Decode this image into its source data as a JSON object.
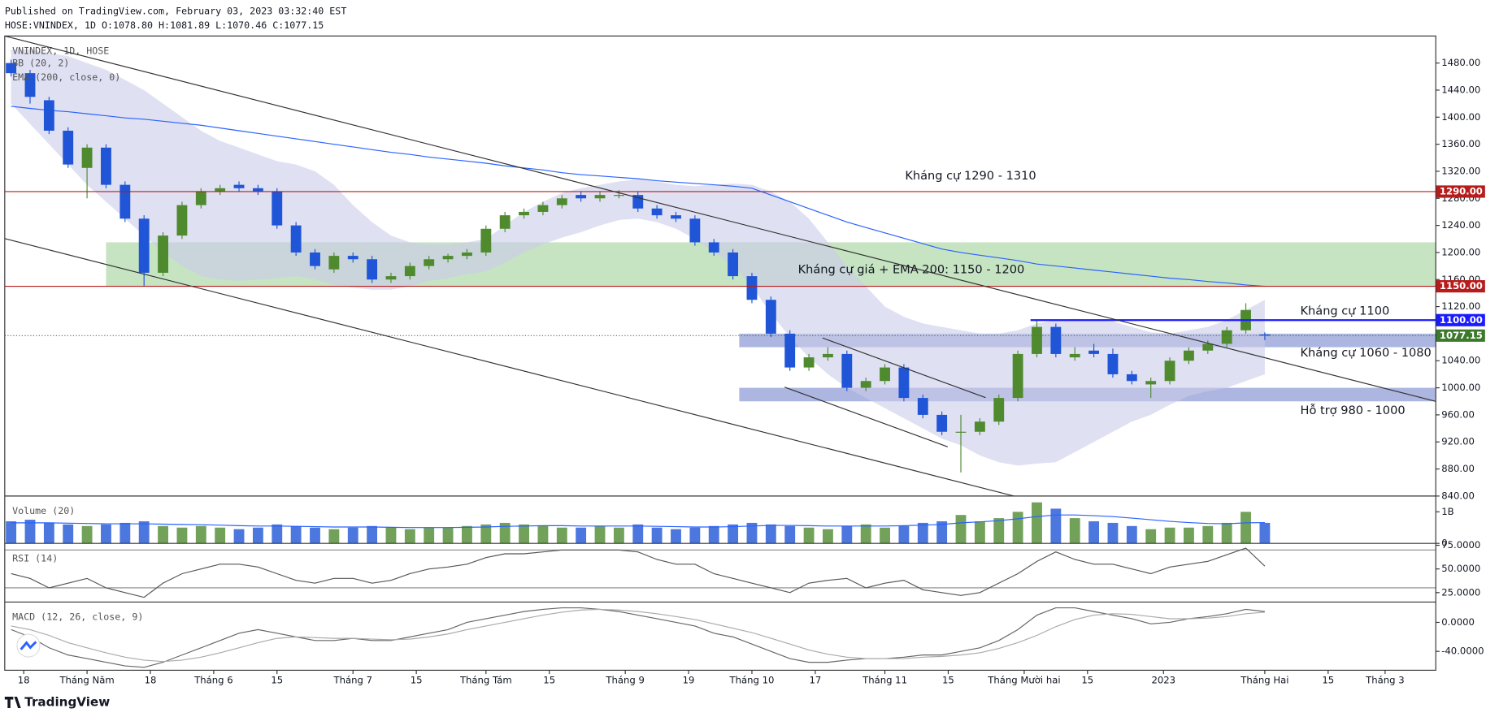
{
  "header": {
    "published": "Published on TradingView.com, February 03, 2023 03:32:40 EST",
    "symbol": "HOSE:VNINDEX, 1D O:1078.80 H:1081.89 L:1070.46 C:1077.15"
  },
  "brand": "TradingView",
  "chart_data": [
    {
      "type": "candlestick",
      "title": "VNINDEX, 1D, HOSE",
      "x": [
        0,
        3,
        6,
        9,
        12,
        15,
        18,
        21,
        24,
        27,
        30,
        33,
        36,
        39,
        42,
        45,
        48,
        51,
        54,
        57,
        60,
        63,
        66,
        69,
        72,
        75,
        78,
        81,
        84,
        87,
        90,
        93,
        96,
        99,
        102,
        105,
        108,
        111,
        114,
        117,
        120,
        123,
        126,
        129,
        132,
        135,
        138,
        141,
        144,
        147,
        150,
        153,
        156,
        159,
        162,
        165,
        168,
        171,
        174,
        177,
        180,
        183,
        186,
        189,
        192,
        195,
        198
      ],
      "open": [
        1480,
        1465,
        1425,
        1380,
        1325,
        1355,
        1300,
        1250,
        1170,
        1225,
        1270,
        1290,
        1300,
        1295,
        1290,
        1240,
        1200,
        1175,
        1195,
        1190,
        1160,
        1165,
        1180,
        1190,
        1195,
        1200,
        1235,
        1255,
        1260,
        1270,
        1285,
        1280,
        1285,
        1285,
        1265,
        1255,
        1250,
        1215,
        1200,
        1165,
        1130,
        1080,
        1030,
        1045,
        1050,
        1000,
        1010,
        1030,
        985,
        960,
        935,
        935,
        950,
        985,
        1050,
        1090,
        1045,
        1055,
        1050,
        1020,
        1005,
        1010,
        1040,
        1055,
        1065,
        1085,
        1078.8
      ],
      "high": [
        1485,
        1470,
        1430,
        1385,
        1360,
        1360,
        1305,
        1255,
        1230,
        1275,
        1295,
        1300,
        1305,
        1300,
        1295,
        1245,
        1205,
        1200,
        1200,
        1195,
        1170,
        1185,
        1195,
        1198,
        1205,
        1240,
        1260,
        1265,
        1275,
        1285,
        1290,
        1290,
        1292,
        1290,
        1270,
        1260,
        1255,
        1220,
        1205,
        1170,
        1135,
        1085,
        1050,
        1060,
        1055,
        1015,
        1035,
        1035,
        990,
        965,
        960,
        955,
        990,
        1055,
        1100,
        1095,
        1060,
        1065,
        1058,
        1025,
        1015,
        1045,
        1060,
        1070,
        1090,
        1125,
        1081.89
      ],
      "low": [
        1460,
        1420,
        1375,
        1325,
        1280,
        1295,
        1245,
        1150,
        1165,
        1220,
        1265,
        1285,
        1290,
        1285,
        1235,
        1195,
        1175,
        1170,
        1185,
        1155,
        1155,
        1160,
        1175,
        1185,
        1190,
        1195,
        1230,
        1250,
        1255,
        1265,
        1275,
        1275,
        1280,
        1260,
        1250,
        1245,
        1210,
        1195,
        1160,
        1125,
        1075,
        1025,
        1025,
        1040,
        995,
        995,
        1005,
        980,
        955,
        930,
        875,
        930,
        945,
        980,
        1045,
        1045,
        1040,
        1045,
        1015,
        1005,
        985,
        1005,
        1035,
        1050,
        1060,
        1080,
        1070.46
      ],
      "close": [
        1465,
        1430,
        1380,
        1330,
        1355,
        1300,
        1250,
        1170,
        1225,
        1270,
        1290,
        1295,
        1295,
        1290,
        1240,
        1200,
        1180,
        1195,
        1190,
        1160,
        1165,
        1180,
        1190,
        1195,
        1200,
        1235,
        1255,
        1260,
        1270,
        1280,
        1280,
        1285,
        1285,
        1265,
        1255,
        1250,
        1215,
        1200,
        1165,
        1130,
        1080,
        1030,
        1045,
        1050,
        1000,
        1010,
        1030,
        985,
        960,
        935,
        935,
        950,
        985,
        1050,
        1090,
        1050,
        1050,
        1050,
        1020,
        1010,
        1010,
        1040,
        1055,
        1065,
        1085,
        1115,
        1077.15
      ],
      "up_color": "#4f8a2f",
      "down_color": "#1f55d6",
      "bb": {
        "name": "BB (20, 2)",
        "color": "#c9cbe9",
        "upper": [
          1500,
          1500,
          1495,
          1490,
          1480,
          1470,
          1455,
          1440,
          1420,
          1400,
          1380,
          1365,
          1355,
          1345,
          1335,
          1330,
          1320,
          1300,
          1270,
          1245,
          1225,
          1215,
          1212,
          1212,
          1215,
          1220,
          1240,
          1260,
          1275,
          1288,
          1295,
          1300,
          1305,
          1308,
          1305,
          1300,
          1298,
          1300,
          1302,
          1300,
          1290,
          1275,
          1250,
          1215,
          1180,
          1150,
          1120,
          1105,
          1095,
          1090,
          1085,
          1080,
          1080,
          1085,
          1095,
          1100,
          1102,
          1100,
          1098,
          1090,
          1082,
          1080,
          1085,
          1090,
          1100,
          1115,
          1130
        ],
        "lower": [
          1420,
          1390,
          1360,
          1330,
          1300,
          1275,
          1250,
          1225,
          1200,
          1180,
          1165,
          1160,
          1158,
          1160,
          1162,
          1165,
          1160,
          1152,
          1148,
          1145,
          1145,
          1150,
          1158,
          1162,
          1168,
          1172,
          1185,
          1200,
          1212,
          1222,
          1230,
          1240,
          1248,
          1250,
          1245,
          1235,
          1220,
          1200,
          1180,
          1150,
          1110,
          1075,
          1045,
          1020,
          1000,
          985,
          970,
          955,
          940,
          925,
          915,
          900,
          890,
          885,
          888,
          890,
          905,
          920,
          935,
          950,
          960,
          975,
          988,
          995,
          1000,
          1010,
          1020
        ]
      },
      "ema": {
        "name": "EMA (200, close, 0)",
        "color": "#2962ff",
        "values": [
          1416,
          1413,
          1410,
          1408,
          1405,
          1402,
          1399,
          1397,
          1394,
          1391,
          1388,
          1384,
          1380,
          1376,
          1372,
          1368,
          1364,
          1360,
          1356,
          1352,
          1348,
          1345,
          1341,
          1338,
          1335,
          1332,
          1328,
          1325,
          1322,
          1318,
          1315,
          1313,
          1311,
          1309,
          1306,
          1304,
          1302,
          1300,
          1298,
          1295,
          1285,
          1275,
          1265,
          1255,
          1245,
          1237,
          1229,
          1221,
          1213,
          1205,
          1200,
          1196,
          1192,
          1188,
          1183,
          1180,
          1177,
          1174,
          1171,
          1168,
          1165,
          1162,
          1160,
          1157,
          1155,
          1152,
          1150
        ]
      },
      "zones": [
        {
          "from": 15,
          "low": 1150,
          "high": 1215,
          "color": "#a9d5a2"
        },
        {
          "from": 115,
          "low": 1060,
          "high": 1080,
          "color": "#7f8fd0"
        },
        {
          "from": 115,
          "low": 980,
          "high": 1000,
          "color": "#7f8fd0"
        }
      ],
      "levels": [
        {
          "value": 1290,
          "label": "1290.00",
          "color": "#b71c1c"
        },
        {
          "value": 1150,
          "label": "1150.00",
          "color": "#b71c1c"
        },
        {
          "value": 1100,
          "label": "1100.00",
          "color": "#1a1aff",
          "from": 161
        },
        {
          "value": 1077.15,
          "label": "1077.15",
          "color": "#3b7a2a",
          "dash": true
        }
      ],
      "annotations": [
        "Kháng cự 1290 - 1310",
        "Kháng cự giá + EMA 200: 1150 - 1200",
        "Kháng cự 1100",
        "Kháng cự 1060 - 1080",
        "Hỗ trợ 980 - 1000"
      ],
      "xlim": [
        -1,
        225
      ],
      "xticks": [
        {
          "value": 2,
          "label": "18"
        },
        {
          "value": 12,
          "label": "Tháng Năm"
        },
        {
          "value": 22,
          "label": "18"
        },
        {
          "value": 32,
          "label": "Tháng 6"
        },
        {
          "value": 42,
          "label": "15"
        },
        {
          "value": 54,
          "label": "Tháng 7"
        },
        {
          "value": 64,
          "label": "15"
        },
        {
          "value": 75,
          "label": "Tháng Tám"
        },
        {
          "value": 85,
          "label": "15"
        },
        {
          "value": 97,
          "label": "Tháng 9"
        },
        {
          "value": 107,
          "label": "19"
        },
        {
          "value": 117,
          "label": "Tháng 10"
        },
        {
          "value": 127,
          "label": "17"
        },
        {
          "value": 138,
          "label": "Tháng 11"
        },
        {
          "value": 148,
          "label": "15"
        },
        {
          "value": 160,
          "label": "Tháng Mười hai"
        },
        {
          "value": 170,
          "label": "15"
        },
        {
          "value": 182,
          "label": "2023"
        },
        {
          "value": 198,
          "label": "Tháng Hai"
        },
        {
          "value": 208,
          "label": "15"
        },
        {
          "value": 217,
          "label": "Tháng 3"
        }
      ],
      "ylim": [
        840,
        1520
      ],
      "yticks": [
        {
          "value": 840,
          "label": "840.00"
        },
        {
          "value": 880,
          "label": "880.00"
        },
        {
          "value": 920,
          "label": "920.00"
        },
        {
          "value": 960,
          "label": "960.00"
        },
        {
          "value": 1000,
          "label": "1000.00"
        },
        {
          "value": 1040,
          "label": "1040.00"
        },
        {
          "value": 1080,
          "label": "1080.00"
        },
        {
          "value": 1120,
          "label": "1120.00"
        },
        {
          "value": 1160,
          "label": "1160.00"
        },
        {
          "value": 1200,
          "label": "1200.00"
        },
        {
          "value": 1240,
          "label": "1240.00"
        },
        {
          "value": 1280,
          "label": "1280.00"
        },
        {
          "value": 1320,
          "label": "1320.00"
        },
        {
          "value": 1360,
          "label": "1360.00"
        },
        {
          "value": 1400,
          "label": "1400.00"
        },
        {
          "value": 1440,
          "label": "1440.00"
        },
        {
          "value": 1480,
          "label": "1480.00"
        }
      ]
    },
    {
      "type": "bar",
      "title": "Volume (20)",
      "values": [
        700000000.0,
        750000000.0,
        650000000.0,
        600000000.0,
        550000000.0,
        600000000.0,
        650000000.0,
        700000000.0,
        550000000.0,
        500000000.0,
        550000000.0,
        500000000.0,
        450000000.0,
        500000000.0,
        600000000.0,
        550000000.0,
        500000000.0,
        450000000.0,
        500000000.0,
        550000000.0,
        500000000.0,
        450000000.0,
        500000000.0,
        500000000.0,
        550000000.0,
        600000000.0,
        650000000.0,
        600000000.0,
        550000000.0,
        500000000.0,
        500000000.0,
        550000000.0,
        500000000.0,
        600000000.0,
        500000000.0,
        450000000.0,
        500000000.0,
        550000000.0,
        600000000.0,
        650000000.0,
        600000000.0,
        550000000.0,
        500000000.0,
        450000000.0,
        550000000.0,
        600000000.0,
        500000000.0,
        550000000.0,
        650000000.0,
        700000000.0,
        900000000.0,
        700000000.0,
        800000000.0,
        1000000000.0,
        1300000000.0,
        1100000000.0,
        800000000.0,
        700000000.0,
        650000000.0,
        550000000.0,
        450000000.0,
        500000000.0,
        500000000.0,
        550000000.0,
        650000000.0,
        1000000000.0,
        650000000.0
      ],
      "ma": [
        650000000.0,
        650000000.0,
        650000000.0,
        640000000.0,
        630000000.0,
        620000000.0,
        620000000.0,
        620000000.0,
        610000000.0,
        600000000.0,
        590000000.0,
        580000000.0,
        560000000.0,
        550000000.0,
        550000000.0,
        540000000.0,
        530000000.0,
        520000000.0,
        520000000.0,
        520000000.0,
        510000000.0,
        500000000.0,
        500000000.0,
        500000000.0,
        510000000.0,
        520000000.0,
        540000000.0,
        550000000.0,
        560000000.0,
        560000000.0,
        550000000.0,
        550000000.0,
        550000000.0,
        550000000.0,
        540000000.0,
        530000000.0,
        520000000.0,
        520000000.0,
        530000000.0,
        550000000.0,
        570000000.0,
        570000000.0,
        560000000.0,
        550000000.0,
        550000000.0,
        550000000.0,
        550000000.0,
        560000000.0,
        580000000.0,
        600000000.0,
        650000000.0,
        680000000.0,
        720000000.0,
        780000000.0,
        850000000.0,
        900000000.0,
        900000000.0,
        880000000.0,
        850000000.0,
        800000000.0,
        750000000.0,
        700000000.0,
        660000000.0,
        630000000.0,
        620000000.0,
        650000000.0,
        660000000.0
      ],
      "ma_color": "#2962ff",
      "ylim": [
        0,
        1500000000.0
      ],
      "yticks": [
        0,
        {
          "value": 1000000000.0,
          "label": "1B"
        }
      ]
    },
    {
      "type": "line",
      "title": "RSI (14)",
      "color": "#555555",
      "values": [
        45,
        40,
        30,
        35,
        40,
        30,
        25,
        20,
        35,
        45,
        50,
        55,
        55,
        52,
        45,
        38,
        35,
        40,
        40,
        35,
        38,
        45,
        50,
        52,
        55,
        62,
        66,
        66,
        68,
        70,
        70,
        70,
        70,
        68,
        60,
        55,
        55,
        45,
        40,
        35,
        30,
        25,
        35,
        38,
        40,
        30,
        35,
        38,
        28,
        25,
        22,
        25,
        35,
        45,
        58,
        68,
        60,
        55,
        55,
        50,
        45,
        52,
        55,
        58,
        65,
        72,
        53
      ],
      "bands": [
        70,
        30
      ],
      "ylim": [
        15,
        77
      ],
      "yticks": [
        {
          "value": 25,
          "label": "25.0000"
        },
        {
          "value": 50,
          "label": "50.0000"
        },
        {
          "value": 75,
          "label": "75.0000"
        }
      ]
    },
    {
      "type": "line",
      "title": "MACD (12, 26, close, 9)",
      "color": "#666666",
      "signal_color": "#aaaaaa",
      "values": [
        -10,
        -20,
        -35,
        -45,
        -50,
        -55,
        -60,
        -62,
        -55,
        -45,
        -35,
        -25,
        -15,
        -10,
        -15,
        -20,
        -25,
        -25,
        -22,
        -25,
        -25,
        -20,
        -15,
        -10,
        0,
        5,
        10,
        15,
        18,
        20,
        20,
        18,
        15,
        10,
        5,
        0,
        -5,
        -15,
        -20,
        -30,
        -40,
        -50,
        -55,
        -55,
        -52,
        -50,
        -50,
        -48,
        -45,
        -45,
        -40,
        -35,
        -25,
        -10,
        10,
        20,
        20,
        15,
        10,
        5,
        -2,
        0,
        5,
        8,
        12,
        18,
        15
      ],
      "signal": [
        -5,
        -10,
        -18,
        -28,
        -35,
        -42,
        -48,
        -52,
        -54,
        -52,
        -48,
        -42,
        -35,
        -28,
        -22,
        -20,
        -21,
        -22,
        -22,
        -23,
        -24,
        -23,
        -20,
        -16,
        -10,
        -5,
        0,
        5,
        10,
        14,
        17,
        18,
        17,
        15,
        12,
        8,
        4,
        -2,
        -8,
        -14,
        -22,
        -30,
        -38,
        -44,
        -48,
        -50,
        -50,
        -50,
        -48,
        -47,
        -45,
        -42,
        -36,
        -28,
        -18,
        -6,
        4,
        10,
        12,
        11,
        8,
        5,
        5,
        6,
        8,
        12,
        14
      ],
      "ylim": [
        -66,
        28
      ],
      "yticks": [
        {
          "value": -40,
          "label": "-40.0000"
        },
        {
          "value": 0,
          "label": "0.0000"
        }
      ]
    }
  ]
}
